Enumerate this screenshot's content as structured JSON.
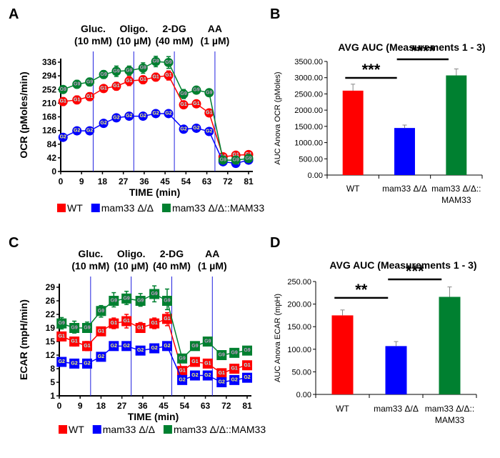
{
  "colors": {
    "WT": "#ff0000",
    "mam33": "#0000ff",
    "comp": "#008030",
    "inj_line": "#2020e0"
  },
  "chart_data": [
    {
      "panel": "A",
      "type": "line",
      "marker": "circle",
      "ylabel": "OCR (pMoles/min)",
      "xlabel": "TIME (min)",
      "yticks": [
        0,
        42,
        84,
        126,
        168,
        210,
        252,
        294,
        336
      ],
      "ylim": [
        0,
        350
      ],
      "xticks": [
        0,
        9,
        18,
        27,
        36,
        45,
        54,
        63,
        72,
        81
      ],
      "xlim": [
        0,
        83
      ],
      "injections": [
        {
          "x": 14,
          "name": "Gluc.",
          "conc": "(10 mM)"
        },
        {
          "x": 31.5,
          "name": "Oligo.",
          "conc": "(10 µM)"
        },
        {
          "x": 49,
          "name": "2-DG",
          "conc": "(40 mM)"
        },
        {
          "x": 66.5,
          "name": "AA",
          "conc": "(1 µM)"
        }
      ],
      "x": [
        1,
        7,
        12.5,
        18.5,
        24,
        29.5,
        35.5,
        41,
        46.5,
        53,
        58.5,
        64,
        70,
        75.5,
        81
      ],
      "series": [
        {
          "name": "WT",
          "key": "WT",
          "tag": "G1",
          "values": [
            215,
            220,
            230,
            255,
            262,
            278,
            282,
            290,
            295,
            205,
            208,
            180,
            45,
            50,
            52
          ],
          "err": [
            12,
            12,
            12,
            10,
            12,
            14,
            12,
            12,
            14,
            8,
            8,
            8,
            6,
            6,
            6
          ]
        },
        {
          "name": "mam33 Δ/Δ",
          "key": "mam33",
          "tag": "G2",
          "values": [
            105,
            125,
            125,
            148,
            165,
            170,
            170,
            178,
            178,
            130,
            133,
            123,
            30,
            25,
            35
          ],
          "err": [
            5,
            5,
            5,
            5,
            5,
            5,
            5,
            5,
            5,
            5,
            5,
            5,
            4,
            4,
            4
          ]
        },
        {
          "name": "mam33 Δ/Δ::MAM33",
          "key": "comp",
          "tag": "G9",
          "values": [
            252,
            268,
            275,
            298,
            308,
            310,
            318,
            338,
            335,
            238,
            250,
            242,
            35,
            35,
            40
          ],
          "err": [
            10,
            12,
            12,
            12,
            16,
            14,
            16,
            16,
            18,
            14,
            10,
            10,
            6,
            6,
            6
          ]
        }
      ]
    },
    {
      "panel": "B",
      "type": "bar",
      "title": "AVG AUC (Measurements 1 - 3)",
      "ylabel": "AUC Anova OCR (pMoles)",
      "yticks": [
        "0.00",
        "500.00",
        "1000.00",
        "1500.00",
        "2000.00",
        "2500.00",
        "3000.00",
        "3500.00"
      ],
      "ylim": [
        0,
        3500
      ],
      "categories": [
        "WT",
        "mam33 Δ/Δ",
        [
          "mam33 Δ/Δ::",
          "MAM33"
        ]
      ],
      "values": [
        2600,
        1450,
        3070
      ],
      "err": [
        200,
        90,
        200
      ],
      "significance": [
        {
          "from": 0,
          "to": 1,
          "label": "***"
        },
        {
          "from": 1,
          "to": 2,
          "label": "****"
        }
      ]
    },
    {
      "panel": "C",
      "type": "line",
      "marker": "square",
      "ylabel": "ECAR (mpH/min)",
      "xlabel": "TIME (min)",
      "yticks": [
        1,
        5,
        8,
        12,
        15,
        19,
        22,
        26,
        29
      ],
      "ylim": [
        1,
        31
      ],
      "xticks": [
        0,
        9,
        18,
        27,
        36,
        45,
        54,
        63,
        72,
        81
      ],
      "xlim": [
        0,
        83
      ],
      "injections": [
        {
          "x": 13.5,
          "name": "Gluc.",
          "conc": "(10 mM)"
        },
        {
          "x": 31,
          "name": "Oligo.",
          "conc": "(10 µM)"
        },
        {
          "x": 48.5,
          "name": "2-DG",
          "conc": "(40 mM)"
        },
        {
          "x": 66,
          "name": "AA",
          "conc": "(1 µM)"
        }
      ],
      "x": [
        1,
        6.5,
        12,
        18,
        23.5,
        29,
        35,
        41,
        46.5,
        53,
        58.5,
        64,
        70,
        75.5,
        81
      ],
      "series": [
        {
          "name": "WT",
          "key": "WT",
          "tag": "G1",
          "values": [
            16.5,
            15,
            14,
            18,
            20,
            20.5,
            19,
            20,
            21,
            7.5,
            10,
            9.5,
            7,
            8,
            9
          ],
          "err": [
            1,
            1,
            1,
            1.2,
            1.2,
            1.5,
            1.2,
            1.2,
            1.5,
            0.8,
            0.8,
            0.8,
            0.6,
            0.6,
            0.6
          ]
        },
        {
          "name": "mam33 Δ/Δ",
          "key": "mam33",
          "tag": "G2",
          "values": [
            10,
            9.5,
            9.5,
            11.5,
            14,
            14,
            13,
            13.5,
            14,
            5.5,
            6.5,
            6.5,
            5,
            5.5,
            6
          ],
          "err": [
            0.6,
            0.6,
            0.6,
            0.6,
            0.6,
            0.6,
            0.6,
            0.6,
            0.6,
            0.5,
            0.5,
            0.5,
            0.5,
            0.5,
            0.5
          ]
        },
        {
          "name": "mam33 Δ/Δ::MAM33",
          "key": "comp",
          "tag": "G9",
          "values": [
            20,
            19,
            19,
            23,
            26,
            26.5,
            26,
            27.5,
            26,
            11,
            14,
            15,
            12,
            12.5,
            13
          ],
          "err": [
            1.3,
            1.5,
            1.3,
            1.6,
            1.8,
            1.6,
            1.6,
            1.8,
            2.6,
            0.8,
            0.8,
            0.8,
            0.6,
            0.6,
            0.6
          ]
        }
      ]
    },
    {
      "panel": "D",
      "type": "bar",
      "title": "AVG AUC (Measurements 1 - 3)",
      "ylabel": "AUC Anova ECAR (mpH)",
      "yticks": [
        "0.00",
        "50.00",
        "100.00",
        "150.00",
        "200.00",
        "250.00"
      ],
      "ylim": [
        0,
        250
      ],
      "categories": [
        "WT",
        "mam33 Δ/Δ",
        [
          "mam33 Δ/Δ::",
          "MAM33"
        ]
      ],
      "values": [
        175,
        107,
        216
      ],
      "err": [
        12,
        10,
        22
      ],
      "significance": [
        {
          "from": 0,
          "to": 1,
          "label": "**"
        },
        {
          "from": 1,
          "to": 2,
          "label": "***"
        }
      ]
    }
  ],
  "legend": [
    {
      "label": "WT",
      "key": "WT"
    },
    {
      "label": "mam33 Δ/Δ",
      "key": "mam33"
    },
    {
      "label": "mam33 Δ/Δ::MAM33",
      "key": "comp"
    }
  ]
}
